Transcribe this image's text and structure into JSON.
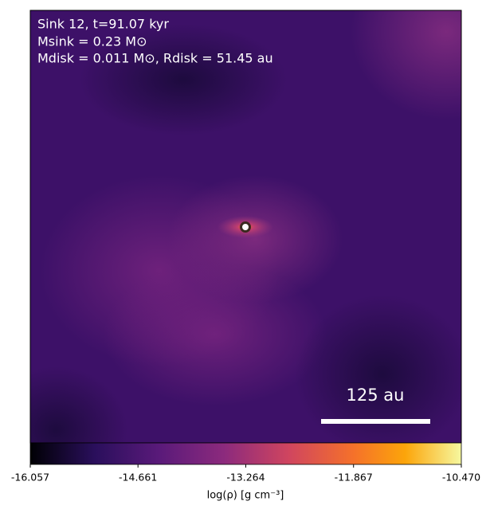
{
  "chart_data": {
    "type": "heatmap",
    "annotations": [
      "Sink 12, t=91.07 kyr",
      "Msink = 0.23 M⊙",
      "Mdisk = 0.011 M⊙, Rdisk = 51.45 au"
    ],
    "scale_bar": "125 au",
    "colorbar": {
      "label": "log(ρ) [g cm⁻³]",
      "lim": [
        -16.057,
        -10.47
      ],
      "ticks": [
        -16.057,
        -14.661,
        -13.264,
        -11.867,
        {
          "value": -10.47,
          "label": "-10.470"
        }
      ]
    }
  }
}
